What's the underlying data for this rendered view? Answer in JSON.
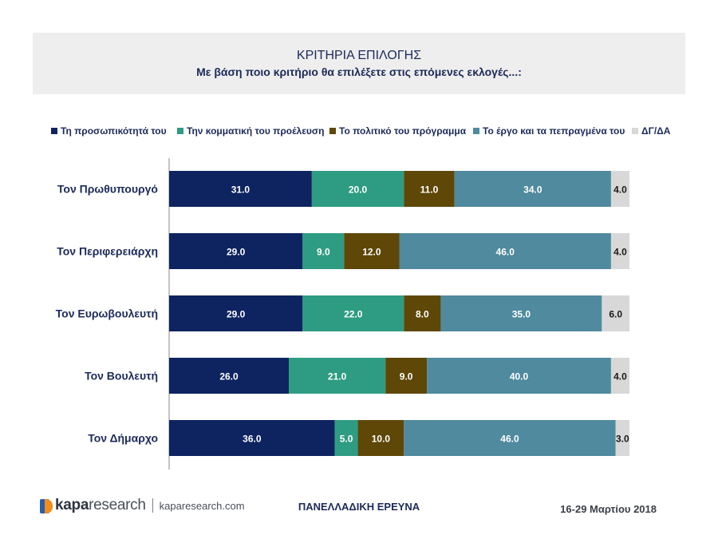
{
  "header": {
    "title": "ΚΡΙΤΗΡΙΑ ΕΠΙΛΟΓΗΣ",
    "subtitle": "Με βάση ποιο κριτήριο θα επιλέξετε στις επόμενες εκλογές...:"
  },
  "legend": [
    {
      "label": "Τη προσωπικότητά του",
      "color": "#0e2461"
    },
    {
      "label": "Την κομματική του προέλευση",
      "color": "#2e9c82"
    },
    {
      "label": "Το πολιτικό του πρόγραμμα",
      "color": "#5e4707"
    },
    {
      "label": "Το έργο και τα πεπραγμένα του",
      "color": "#4f8a9e"
    },
    {
      "label": "ΔΓ/ΔΑ",
      "color": "#d8d8d8"
    }
  ],
  "chart_data": {
    "type": "bar",
    "orientation": "horizontal",
    "stacked": true,
    "title": "ΚΡΙΤΗΡΙΑ ΕΠΙΛΟΓΗΣ",
    "subtitle": "Με βάση ποιο κριτήριο θα επιλέξετε στις επόμενες εκλογές...:",
    "categories": [
      "Τον Πρωθυπουργό",
      "Τον Περιφερειάρχη",
      "Τον Ευρωβουλευτή",
      "Τον Βουλευτή",
      "Τον Δήμαρχο"
    ],
    "series": [
      {
        "name": "Τη προσωπικότητά του",
        "color": "#0e2461",
        "values": [
          31.0,
          29.0,
          29.0,
          26.0,
          36.0
        ],
        "labels": [
          "31.0",
          "29.0",
          "29.0",
          "26.0",
          "36.0"
        ]
      },
      {
        "name": "Την κομματική του προέλευση",
        "color": "#2e9c82",
        "values": [
          20.0,
          9.0,
          22.0,
          21.0,
          5.0
        ],
        "labels": [
          "20.0",
          "9.0",
          "22.0",
          "21.0",
          "5.0"
        ]
      },
      {
        "name": "Το πολιτικό του πρόγραμμα",
        "color": "#5e4707",
        "values": [
          11.0,
          12.0,
          8.0,
          9.0,
          10.0
        ],
        "labels": [
          "11.0",
          "12.0",
          "8.0",
          "9.0",
          "10.0"
        ]
      },
      {
        "name": "Το έργο και τα πεπραγμένα του",
        "color": "#4f8a9e",
        "values": [
          34.0,
          46.0,
          35.0,
          40.0,
          46.0
        ],
        "labels": [
          "34.0",
          "46.0",
          "35.0",
          "40.0",
          "46.0"
        ]
      },
      {
        "name": "ΔΓ/ΔΑ",
        "color": "#d8d8d8",
        "values": [
          4.0,
          4.0,
          6.0,
          4.0,
          3.0
        ],
        "labels": [
          "4.0",
          "4.0",
          "6.0",
          "4.0",
          "3.0"
        ]
      }
    ],
    "legend": "top",
    "grid": false
  },
  "footer": {
    "logo_bold": "kapa",
    "logo_light": "research",
    "logo_url": "kaparesearch.com",
    "survey": "ΠΑΝΕΛΛΑΔΙΚΗ ΕΡΕΥΝΑ",
    "date": "16-29 Μαρτίου 2018"
  }
}
